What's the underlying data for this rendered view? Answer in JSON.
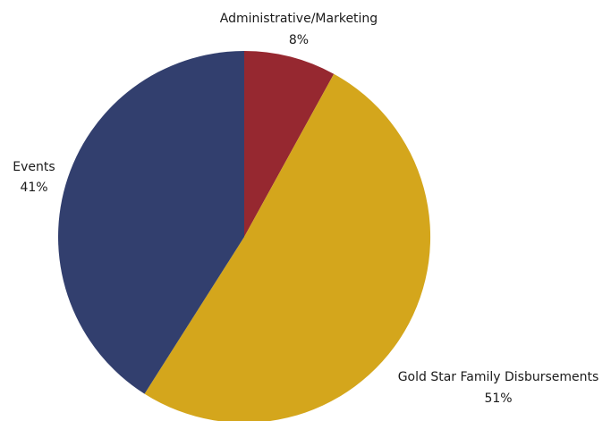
{
  "chart_data": {
    "type": "pie",
    "categories": [
      "Administrative/Marketing",
      "Gold Star Family Disbursements",
      "Events"
    ],
    "values": [
      8,
      51,
      41
    ],
    "percent_labels": [
      "8%",
      "51%",
      "41%"
    ],
    "colors": [
      "#962830",
      "#D4A61C",
      "#323F6E"
    ],
    "start_angle_deg": 0,
    "direction": "clockwise",
    "legend": "none"
  }
}
